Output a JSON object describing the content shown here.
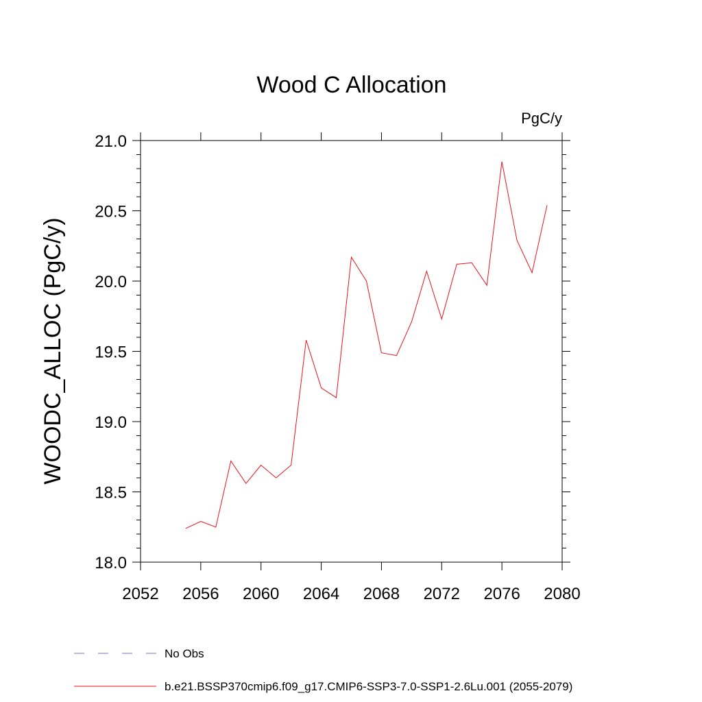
{
  "chart_data": {
    "type": "line",
    "title": "Wood C Allocation",
    "units_label": "PgC/y",
    "xlabel": "",
    "ylabel": "WOODC_ALLOC  (PgC/y)",
    "xlim": [
      2052,
      2080
    ],
    "ylim": [
      18.0,
      21.0
    ],
    "x_ticks": [
      2052,
      2056,
      2060,
      2064,
      2068,
      2072,
      2076,
      2080
    ],
    "x_tick_labels": [
      "2052",
      "2056",
      "2060",
      "2064",
      "2068",
      "2072",
      "2076",
      "2080"
    ],
    "y_ticks": [
      18.0,
      18.5,
      19.0,
      19.5,
      20.0,
      20.5,
      21.0
    ],
    "y_tick_labels": [
      "18.0",
      "18.5",
      "19.0",
      "19.5",
      "20.0",
      "20.5",
      "21.0"
    ],
    "grid": false,
    "legend_position": "bottom",
    "series": [
      {
        "name": "b.e21.BSSP370cmip6.f09_g17.CMIP6-SSP3-7.0-SSP1-2.6Lu.001 (2055-2079)",
        "color": "#e8111d",
        "dash": "solid",
        "x": [
          2055,
          2056,
          2057,
          2058,
          2059,
          2060,
          2061,
          2062,
          2063,
          2064,
          2065,
          2066,
          2067,
          2068,
          2069,
          2070,
          2071,
          2072,
          2073,
          2074,
          2075,
          2076,
          2077,
          2078,
          2079
        ],
        "y": [
          18.24,
          18.29,
          18.25,
          18.72,
          18.56,
          18.69,
          18.6,
          18.69,
          19.58,
          19.24,
          19.17,
          20.17,
          20.0,
          19.49,
          19.47,
          19.71,
          20.07,
          19.73,
          20.12,
          20.13,
          19.97,
          20.85,
          20.29,
          20.06,
          20.54
        ]
      }
    ],
    "legend": [
      {
        "label": "No Obs",
        "color": "#7b6fb8",
        "dash": "dashed"
      },
      {
        "label": "b.e21.BSSP370cmip6.f09_g17.CMIP6-SSP3-7.0-SSP1-2.6Lu.001 (2055-2079)",
        "color": "#e8111d",
        "dash": "solid"
      }
    ]
  }
}
